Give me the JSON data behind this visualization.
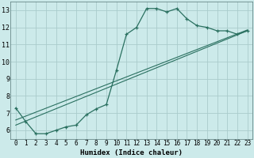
{
  "title": "",
  "xlabel": "Humidex (Indice chaleur)",
  "ylabel": "",
  "bg_color": "#cceaea",
  "grid_color": "#aacccc",
  "line_color": "#2a7060",
  "xlim": [
    -0.5,
    23.5
  ],
  "ylim": [
    5.5,
    13.5
  ],
  "xticks": [
    0,
    1,
    2,
    3,
    4,
    5,
    6,
    7,
    8,
    9,
    10,
    11,
    12,
    13,
    14,
    15,
    16,
    17,
    18,
    19,
    20,
    21,
    22,
    23
  ],
  "yticks": [
    6,
    7,
    8,
    9,
    10,
    11,
    12,
    13
  ],
  "series1_x": [
    0,
    1,
    2,
    3,
    4,
    5,
    6,
    7,
    8,
    9,
    10,
    11,
    12,
    13,
    14,
    15,
    16,
    17,
    18,
    19,
    20,
    21,
    22,
    23
  ],
  "series1_y": [
    7.3,
    6.5,
    5.8,
    5.8,
    6.0,
    6.2,
    6.3,
    6.9,
    7.25,
    7.5,
    9.5,
    11.6,
    12.0,
    13.1,
    13.1,
    12.9,
    13.1,
    12.5,
    12.1,
    12.0,
    11.8,
    11.8,
    11.6,
    11.8
  ],
  "series2_x": [
    0,
    23
  ],
  "series2_y": [
    6.3,
    11.8
  ],
  "series3_x": [
    0,
    23
  ],
  "series3_y": [
    6.6,
    11.85
  ],
  "xlabel_fontsize": 6.5,
  "tick_fontsize": 5.5
}
